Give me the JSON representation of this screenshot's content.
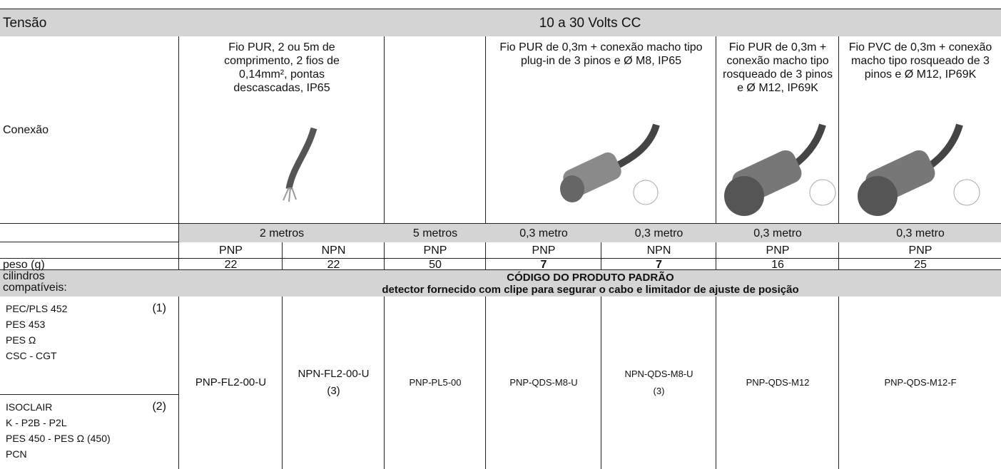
{
  "header": {
    "label": "Tensão",
    "value": "10 a 30 Volts CC"
  },
  "connection": {
    "label": "Conexão",
    "descriptions": [
      "Fio PUR, 2 ou 5m de comprimento, 2 fios de 0,14mm², pontas descascadas, IP65",
      "Fio PUR de 0,3m + conexão macho tipo plug-in de 3 pinos e Ø M8, IP65",
      "Fio PUR de 0,3m + conexão macho tipo rosqueado de 3 pinos e Ø M12, IP69K",
      "Fio PVC de 0,3m + conexão macho tipo rosqueado de 3 pinos e Ø M12, IP69K"
    ]
  },
  "lengths": [
    "2 metros",
    "5 metros",
    "0,3 metro",
    "0,3 metro",
    "0,3 metro",
    "0,3 metro"
  ],
  "types": [
    "PNP",
    "NPN",
    "PNP",
    "PNP",
    "NPN",
    "PNP",
    "PNP"
  ],
  "weight": {
    "label": "peso (g)",
    "values": [
      22,
      22,
      50,
      7,
      7,
      16,
      25
    ]
  },
  "compat": {
    "label": "cilindros compatíveis:",
    "title": "CÓDIGO DO PRODUTO PADRÃO",
    "subtitle": "detector fornecido com clipe para segurar o cabo e limitador de ajuste de posição"
  },
  "groups": [
    {
      "items": [
        "PEC/PLS 452",
        "PES 453",
        "PES Ω",
        "CSC - CGT"
      ],
      "note": "(1)"
    },
    {
      "items": [
        "ISOCLAIR",
        "K - P2B - P2L",
        "PES 450 - PES Ω (450)",
        "PCN"
      ],
      "note": "(2)"
    }
  ],
  "codes": [
    {
      "code": "PNP-FL2-00-U"
    },
    {
      "code": "NPN-FL2-00-U",
      "note": "(3)"
    },
    {
      "code": "PNP-PL5-00"
    },
    {
      "code": "PNP-QDS-M8-U"
    },
    {
      "code": "NPN-QDS-M8-U",
      "note": "(3)"
    },
    {
      "code": "PNP-QDS-M12"
    },
    {
      "code": "PNP-QDS-M12-F"
    }
  ]
}
